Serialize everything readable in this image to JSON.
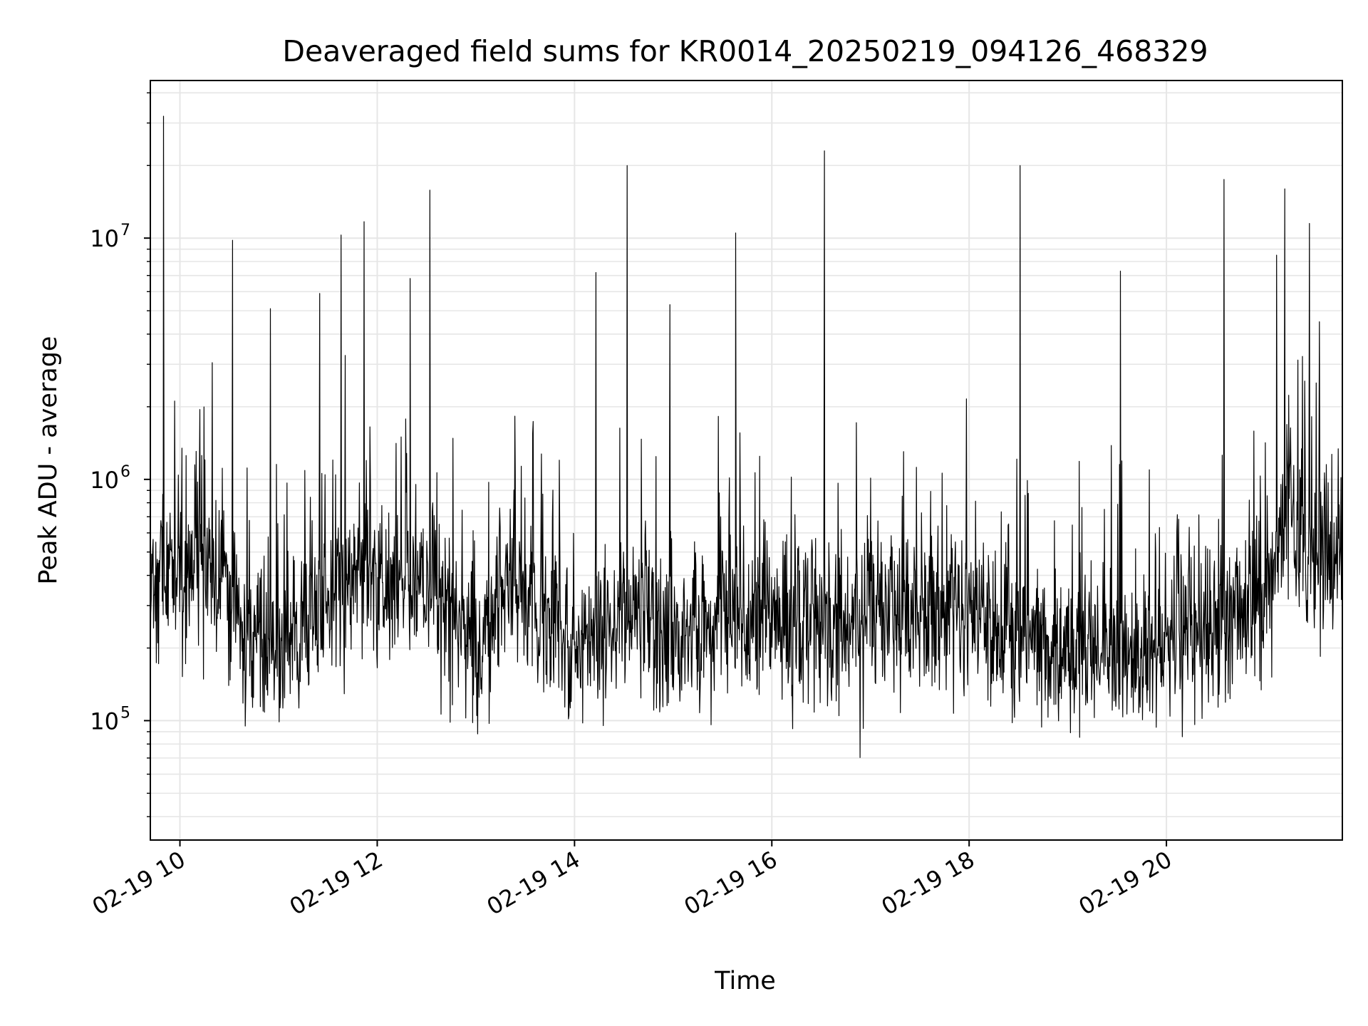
{
  "chart_data": {
    "type": "line",
    "title": "Deaveraged field sums for KR0014_20250219_094126_468329",
    "xlabel": "Time",
    "ylabel": "Peak ADU - average",
    "y_scale": "log",
    "ylim": [
      32000,
      45000000
    ],
    "xlim": [
      "2025-02-19 09:42",
      "2025-02-19 21:47"
    ],
    "grid": true,
    "line_color": "#000000",
    "grid_color": "#e6e6e6",
    "x_ticks": [
      {
        "value": "2025-02-19 10:00",
        "label": "02-19 10"
      },
      {
        "value": "2025-02-19 12:00",
        "label": "02-19 12"
      },
      {
        "value": "2025-02-19 14:00",
        "label": "02-19 14"
      },
      {
        "value": "2025-02-19 16:00",
        "label": "02-19 16"
      },
      {
        "value": "2025-02-19 18:00",
        "label": "02-19 18"
      },
      {
        "value": "2025-02-19 20:00",
        "label": "02-19 20"
      }
    ],
    "y_ticks": [
      {
        "value": 100000,
        "base": "10",
        "exp": "5"
      },
      {
        "value": 1000000,
        "base": "10",
        "exp": "6"
      },
      {
        "value": 10000000,
        "base": "10",
        "exp": "7"
      }
    ],
    "baseline": [
      {
        "x": "2025-02-19 09:42",
        "y": 350000
      },
      {
        "x": "2025-02-19 10:15",
        "y": 450000
      },
      {
        "x": "2025-02-19 10:40",
        "y": 220000
      },
      {
        "x": "2025-02-19 11:10",
        "y": 230000
      },
      {
        "x": "2025-02-19 11:45",
        "y": 420000
      },
      {
        "x": "2025-02-19 12:30",
        "y": 330000
      },
      {
        "x": "2025-02-19 13:00",
        "y": 220000
      },
      {
        "x": "2025-02-19 13:20",
        "y": 400000
      },
      {
        "x": "2025-02-19 14:00",
        "y": 200000
      },
      {
        "x": "2025-02-19 14:30",
        "y": 280000
      },
      {
        "x": "2025-02-19 15:00",
        "y": 220000
      },
      {
        "x": "2025-02-19 15:30",
        "y": 300000
      },
      {
        "x": "2025-02-19 16:00",
        "y": 260000
      },
      {
        "x": "2025-02-19 17:00",
        "y": 270000
      },
      {
        "x": "2025-02-19 18:00",
        "y": 270000
      },
      {
        "x": "2025-02-19 19:00",
        "y": 190000
      },
      {
        "x": "2025-02-19 19:45",
        "y": 190000
      },
      {
        "x": "2025-02-19 20:30",
        "y": 260000
      },
      {
        "x": "2025-02-19 21:00",
        "y": 300000
      },
      {
        "x": "2025-02-19 21:15",
        "y": 900000
      },
      {
        "x": "2025-02-19 21:25",
        "y": 450000
      },
      {
        "x": "2025-02-19 21:47",
        "y": 550000
      }
    ],
    "peaks": [
      {
        "x": "2025-02-19 09:50",
        "y": 32000000
      },
      {
        "x": "2025-02-19 10:32",
        "y": 9800000
      },
      {
        "x": "2025-02-19 10:55",
        "y": 5100000
      },
      {
        "x": "2025-02-19 11:25",
        "y": 5900000
      },
      {
        "x": "2025-02-19 11:38",
        "y": 10300000
      },
      {
        "x": "2025-02-19 11:52",
        "y": 11700000
      },
      {
        "x": "2025-02-19 12:20",
        "y": 6800000
      },
      {
        "x": "2025-02-19 12:32",
        "y": 15800000
      },
      {
        "x": "2025-02-19 14:13",
        "y": 7200000
      },
      {
        "x": "2025-02-19 14:32",
        "y": 20000000
      },
      {
        "x": "2025-02-19 14:58",
        "y": 5300000
      },
      {
        "x": "2025-02-19 15:38",
        "y": 10500000
      },
      {
        "x": "2025-02-19 16:32",
        "y": 23000000
      },
      {
        "x": "2025-02-19 18:31",
        "y": 20000000
      },
      {
        "x": "2025-02-19 19:32",
        "y": 7300000
      },
      {
        "x": "2025-02-19 20:35",
        "y": 17500000
      },
      {
        "x": "2025-02-19 21:07",
        "y": 8500000
      },
      {
        "x": "2025-02-19 21:12",
        "y": 16000000
      },
      {
        "x": "2025-02-19 21:27",
        "y": 11500000
      }
    ]
  }
}
